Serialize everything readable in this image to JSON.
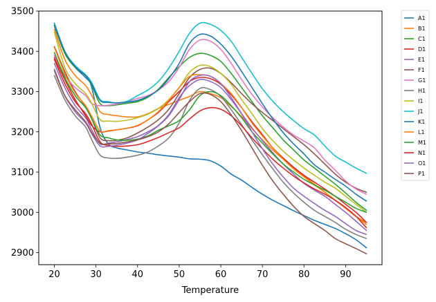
{
  "chart_data": {
    "type": "line",
    "title": "",
    "xlabel": "Temperature",
    "ylabel": "",
    "xlim": [
      16.25,
      98.75
    ],
    "ylim": [
      2870,
      3500
    ],
    "xticks": [
      20,
      30,
      40,
      50,
      60,
      70,
      80,
      90
    ],
    "yticks": [
      2900,
      3000,
      3100,
      3200,
      3300,
      3400,
      3500
    ],
    "grid": false,
    "legend_position": "outside-right-top",
    "x": [
      20,
      22.5,
      25,
      27.5,
      29,
      31,
      33,
      35,
      37.5,
      40,
      42.5,
      45,
      47.5,
      50,
      52.5,
      55,
      57.5,
      60,
      62.5,
      65,
      67.5,
      70,
      72.5,
      75,
      77.5,
      80,
      82.5,
      85,
      87.5,
      90,
      92.5,
      95
    ],
    "series": [
      {
        "name": "A1",
        "color": "#1f77b4",
        "values": [
          3470,
          3400,
          3360,
          3335,
          3310,
          3210,
          3170,
          3160,
          3155,
          3150,
          3147,
          3143,
          3140,
          3137,
          3133,
          3132,
          3128,
          3115,
          3095,
          3080,
          3062,
          3045,
          3030,
          3017,
          3004,
          2992,
          2980,
          2970,
          2960,
          2947,
          2932,
          2912
        ]
      },
      {
        "name": "B1",
        "color": "#ff7f0e",
        "values": [
          3455,
          3380,
          3340,
          3315,
          3290,
          3250,
          3243,
          3240,
          3237,
          3237,
          3245,
          3258,
          3268,
          3278,
          3288,
          3300,
          3295,
          3285,
          3263,
          3238,
          3208,
          3180,
          3155,
          3132,
          3110,
          3090,
          3070,
          3050,
          3030,
          3010,
          2990,
          2975
        ]
      },
      {
        "name": "C1",
        "color": "#2ca02c",
        "values": [
          3463,
          3395,
          3360,
          3340,
          3315,
          3270,
          3265,
          3267,
          3271,
          3275,
          3286,
          3306,
          3335,
          3362,
          3385,
          3395,
          3390,
          3375,
          3345,
          3310,
          3275,
          3240,
          3210,
          3180,
          3155,
          3130,
          3110,
          3090,
          3070,
          3048,
          3025,
          3005
        ]
      },
      {
        "name": "D1",
        "color": "#d62728",
        "values": [
          3385,
          3330,
          3280,
          3240,
          3215,
          3200,
          3202,
          3205,
          3209,
          3215,
          3230,
          3248,
          3275,
          3300,
          3325,
          3335,
          3332,
          3318,
          3292,
          3260,
          3225,
          3193,
          3160,
          3135,
          3112,
          3092,
          3075,
          3058,
          3040,
          3020,
          3000,
          2975
        ]
      },
      {
        "name": "E1",
        "color": "#9467bd",
        "values": [
          3370,
          3310,
          3265,
          3235,
          3205,
          3170,
          3172,
          3175,
          3181,
          3188,
          3200,
          3216,
          3243,
          3285,
          3315,
          3330,
          3325,
          3310,
          3280,
          3245,
          3210,
          3178,
          3148,
          3120,
          3095,
          3072,
          3055,
          3040,
          3020,
          3000,
          2978,
          2955
        ]
      },
      {
        "name": "F1",
        "color": "#8c564b",
        "values": [
          3412,
          3350,
          3300,
          3262,
          3232,
          3185,
          3178,
          3179,
          3185,
          3197,
          3212,
          3230,
          3256,
          3295,
          3335,
          3355,
          3358,
          3345,
          3322,
          3295,
          3270,
          3248,
          3228,
          3208,
          3188,
          3168,
          3145,
          3120,
          3095,
          3075,
          3060,
          3050
        ]
      },
      {
        "name": "G1",
        "color": "#e377c2",
        "values": [
          3390,
          3340,
          3310,
          3290,
          3270,
          3265,
          3266,
          3269,
          3275,
          3283,
          3290,
          3304,
          3325,
          3360,
          3405,
          3428,
          3425,
          3405,
          3370,
          3330,
          3293,
          3262,
          3235,
          3212,
          3192,
          3177,
          3160,
          3130,
          3105,
          3078,
          3058,
          3045
        ]
      },
      {
        "name": "H1",
        "color": "#7f7f7f",
        "values": [
          3340,
          3280,
          3240,
          3212,
          3180,
          3142,
          3135,
          3134,
          3137,
          3142,
          3150,
          3165,
          3185,
          3222,
          3278,
          3308,
          3305,
          3288,
          3255,
          3218,
          3180,
          3143,
          3108,
          3075,
          3048,
          3025,
          3005,
          2990,
          2975,
          2958,
          2945,
          2935
        ]
      },
      {
        "name": "I1",
        "color": "#bcbd22",
        "values": [
          3448,
          3360,
          3320,
          3295,
          3270,
          3230,
          3227,
          3226,
          3229,
          3235,
          3244,
          3258,
          3280,
          3310,
          3348,
          3365,
          3362,
          3345,
          3318,
          3280,
          3245,
          3208,
          3178,
          3152,
          3130,
          3110,
          3092,
          3075,
          3060,
          3040,
          3020,
          3000
        ]
      },
      {
        "name": "J1",
        "color": "#17becf",
        "values": [
          3468,
          3400,
          3365,
          3342,
          3322,
          3280,
          3275,
          3272,
          3276,
          3290,
          3304,
          3325,
          3358,
          3400,
          3445,
          3470,
          3467,
          3452,
          3425,
          3385,
          3345,
          3307,
          3276,
          3250,
          3228,
          3208,
          3192,
          3165,
          3140,
          3125,
          3110,
          3097
        ]
      },
      {
        "name": "K1",
        "color": "#1f77b4",
        "values": [
          3465,
          3400,
          3362,
          3340,
          3318,
          3278,
          3273,
          3272,
          3274,
          3278,
          3288,
          3304,
          3332,
          3370,
          3420,
          3442,
          3438,
          3418,
          3388,
          3350,
          3310,
          3270,
          3232,
          3198,
          3170,
          3145,
          3118,
          3100,
          3082,
          3065,
          3045,
          3028
        ]
      },
      {
        "name": "L1",
        "color": "#ff7f0e",
        "values": [
          3410,
          3345,
          3297,
          3265,
          3238,
          3202,
          3203,
          3205,
          3209,
          3216,
          3230,
          3250,
          3278,
          3310,
          3338,
          3342,
          3338,
          3320,
          3295,
          3260,
          3222,
          3190,
          3160,
          3132,
          3108,
          3088,
          3068,
          3050,
          3030,
          3010,
          2990,
          2970
        ]
      },
      {
        "name": "M1",
        "color": "#2ca02c",
        "values": [
          3397,
          3335,
          3290,
          3260,
          3232,
          3192,
          3185,
          3180,
          3179,
          3182,
          3190,
          3204,
          3215,
          3228,
          3255,
          3290,
          3300,
          3290,
          3265,
          3235,
          3200,
          3172,
          3145,
          3120,
          3100,
          3082,
          3068,
          3055,
          3040,
          3025,
          3010,
          3000
        ]
      },
      {
        "name": "N1",
        "color": "#d62728",
        "values": [
          3380,
          3320,
          3275,
          3245,
          3218,
          3175,
          3166,
          3164,
          3165,
          3168,
          3176,
          3186,
          3198,
          3210,
          3232,
          3252,
          3260,
          3256,
          3240,
          3215,
          3185,
          3158,
          3132,
          3110,
          3090,
          3073,
          3058,
          3045,
          3030,
          3012,
          2990,
          2962
        ]
      },
      {
        "name": "O1",
        "color": "#9467bd",
        "values": [
          3356,
          3290,
          3250,
          3222,
          3195,
          3165,
          3164,
          3167,
          3172,
          3180,
          3196,
          3215,
          3240,
          3280,
          3325,
          3340,
          3338,
          3320,
          3285,
          3245,
          3200,
          3158,
          3120,
          3088,
          3060,
          3040,
          3022,
          3005,
          2990,
          2972,
          2955,
          2945
        ]
      },
      {
        "name": "P1",
        "color": "#8c564b",
        "values": [
          3352,
          3290,
          3255,
          3225,
          3198,
          3172,
          3170,
          3171,
          3175,
          3180,
          3188,
          3200,
          3220,
          3248,
          3275,
          3295,
          3293,
          3275,
          3242,
          3203,
          3160,
          3117,
          3078,
          3045,
          3015,
          2990,
          2972,
          2955,
          2935,
          2922,
          2910,
          2897
        ]
      }
    ]
  }
}
